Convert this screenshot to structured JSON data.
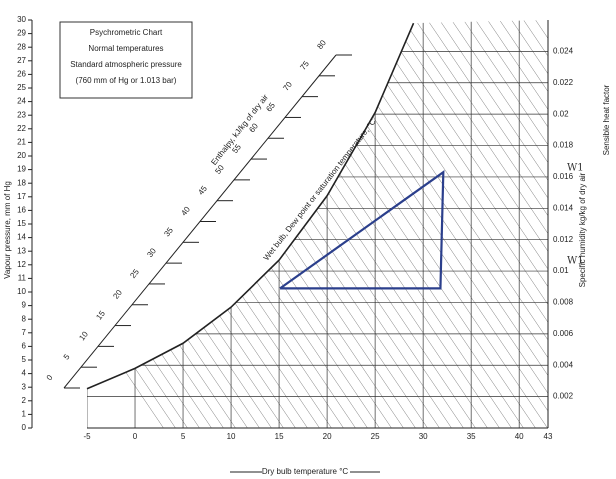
{
  "chart_data": {
    "type": "psychrometric",
    "title": [
      "Psychrometric Chart",
      "Normal temperatures",
      "Standard  atmospheric pressure",
      "(760 mm of Hg or 1.013 bar)"
    ],
    "x_label": "Dry bulb temperature  °C",
    "y_label": "Vapour pressure, mm of Hg",
    "y2_label": "Specific humidity kg/kg of dry air",
    "enthalpy_label": "Enthalpy, kJ/kg of dry air",
    "saturation_label": "Wet bulb, Dew point or saturation temperature, °C",
    "shf_label": "Sensible heat factor",
    "xlim": [
      -5,
      43
    ],
    "xticks": [
      -5,
      0,
      5,
      10,
      15,
      20,
      25,
      30,
      35,
      40,
      43
    ],
    "ylim": [
      0,
      30
    ],
    "yticks": [
      0,
      1,
      2,
      3,
      4,
      5,
      6,
      7,
      8,
      9,
      10,
      11,
      12,
      13,
      14,
      15,
      16,
      17,
      18,
      19,
      20,
      21,
      22,
      23,
      24,
      25,
      26,
      27,
      28,
      29,
      30
    ],
    "y2lim": [
      0,
      0.026
    ],
    "y2ticks": [
      0.002,
      0.004,
      0.006,
      0.008,
      0.01,
      0.012,
      0.014,
      0.016,
      0.018,
      0.02,
      0.022,
      0.024
    ],
    "enthalpy_lim": [
      0,
      80
    ],
    "enthalpy_ticks": [
      0,
      5,
      10,
      15,
      20,
      25,
      30,
      35,
      40,
      45,
      50,
      55,
      60,
      65,
      70,
      75,
      80
    ],
    "saturation": {
      "color": "#222222",
      "x": [
        -5,
        0,
        5,
        10,
        15,
        20,
        25,
        29
      ],
      "values": [
        0.0025,
        0.0038,
        0.0054,
        0.0077,
        0.0107,
        0.0148,
        0.0201,
        0.0258
      ]
    },
    "process": {
      "color": "#2b3f8c",
      "x": [
        15.1,
        31.8,
        32.1,
        15.1
      ],
      "values": [
        0.0089,
        0.0089,
        0.0163,
        0.0089
      ]
    },
    "annotations": [
      "W1",
      "W1"
    ]
  }
}
